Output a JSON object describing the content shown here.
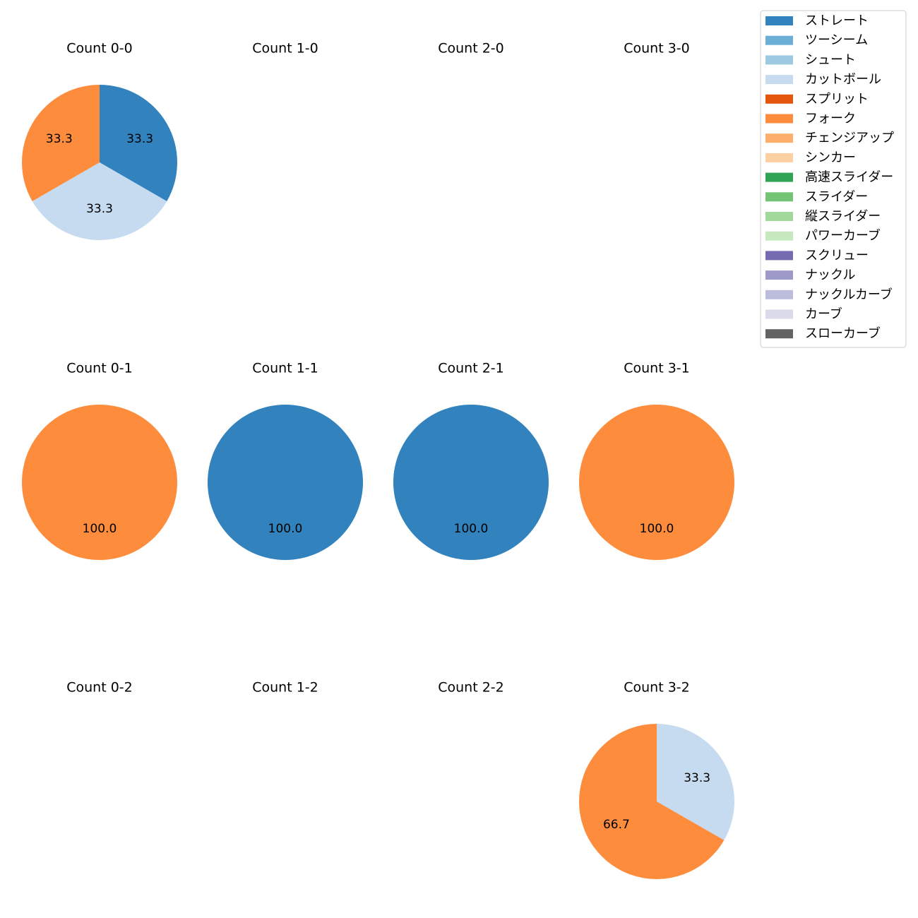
{
  "chart_data": {
    "type": "pie",
    "title": "",
    "legend": {
      "placement": "top-right",
      "entries": [
        {
          "label": "ストレート",
          "color": "#3182bd"
        },
        {
          "label": "ツーシーム",
          "color": "#6baed6"
        },
        {
          "label": "シュート",
          "color": "#9ecae1"
        },
        {
          "label": "カットボール",
          "color": "#c6dbef"
        },
        {
          "label": "スプリット",
          "color": "#e6550d"
        },
        {
          "label": "フォーク",
          "color": "#fd8d3c"
        },
        {
          "label": "チェンジアップ",
          "color": "#fdae6b"
        },
        {
          "label": "シンカー",
          "color": "#fdd0a2"
        },
        {
          "label": "高速スライダー",
          "color": "#31a354"
        },
        {
          "label": "スライダー",
          "color": "#74c476"
        },
        {
          "label": "縦スライダー",
          "color": "#a1d99b"
        },
        {
          "label": "パワーカーブ",
          "color": "#c7e9c0"
        },
        {
          "label": "スクリュー",
          "color": "#756bb1"
        },
        {
          "label": "ナックル",
          "color": "#9e9ac8"
        },
        {
          "label": "ナックルカーブ",
          "color": "#bcbddc"
        },
        {
          "label": "カーブ",
          "color": "#dadaeb"
        },
        {
          "label": "スローカーブ",
          "color": "#636363"
        }
      ]
    },
    "panels": [
      {
        "title": "Count 0-0",
        "row": 0,
        "col": 0,
        "slices": [
          {
            "pitch": "ストレート",
            "value": 33.3,
            "label": "33.3"
          },
          {
            "pitch": "カットボール",
            "value": 33.3,
            "label": "33.3"
          },
          {
            "pitch": "フォーク",
            "value": 33.3,
            "label": "33.3"
          }
        ]
      },
      {
        "title": "Count 1-0",
        "row": 0,
        "col": 1,
        "slices": []
      },
      {
        "title": "Count 2-0",
        "row": 0,
        "col": 2,
        "slices": []
      },
      {
        "title": "Count 3-0",
        "row": 0,
        "col": 3,
        "slices": []
      },
      {
        "title": "Count 0-1",
        "row": 1,
        "col": 0,
        "slices": [
          {
            "pitch": "フォーク",
            "value": 100.0,
            "label": "100.0"
          }
        ]
      },
      {
        "title": "Count 1-1",
        "row": 1,
        "col": 1,
        "slices": [
          {
            "pitch": "ストレート",
            "value": 100.0,
            "label": "100.0"
          }
        ]
      },
      {
        "title": "Count 2-1",
        "row": 1,
        "col": 2,
        "slices": [
          {
            "pitch": "ストレート",
            "value": 100.0,
            "label": "100.0"
          }
        ]
      },
      {
        "title": "Count 3-1",
        "row": 1,
        "col": 3,
        "slices": [
          {
            "pitch": "フォーク",
            "value": 100.0,
            "label": "100.0"
          }
        ]
      },
      {
        "title": "Count 0-2",
        "row": 2,
        "col": 0,
        "slices": []
      },
      {
        "title": "Count 1-2",
        "row": 2,
        "col": 1,
        "slices": []
      },
      {
        "title": "Count 2-2",
        "row": 2,
        "col": 2,
        "slices": []
      },
      {
        "title": "Count 3-2",
        "row": 2,
        "col": 3,
        "slices": [
          {
            "pitch": "カットボール",
            "value": 33.3,
            "label": "33.3"
          },
          {
            "pitch": "フォーク",
            "value": 66.7,
            "label": "66.7"
          }
        ]
      }
    ]
  }
}
